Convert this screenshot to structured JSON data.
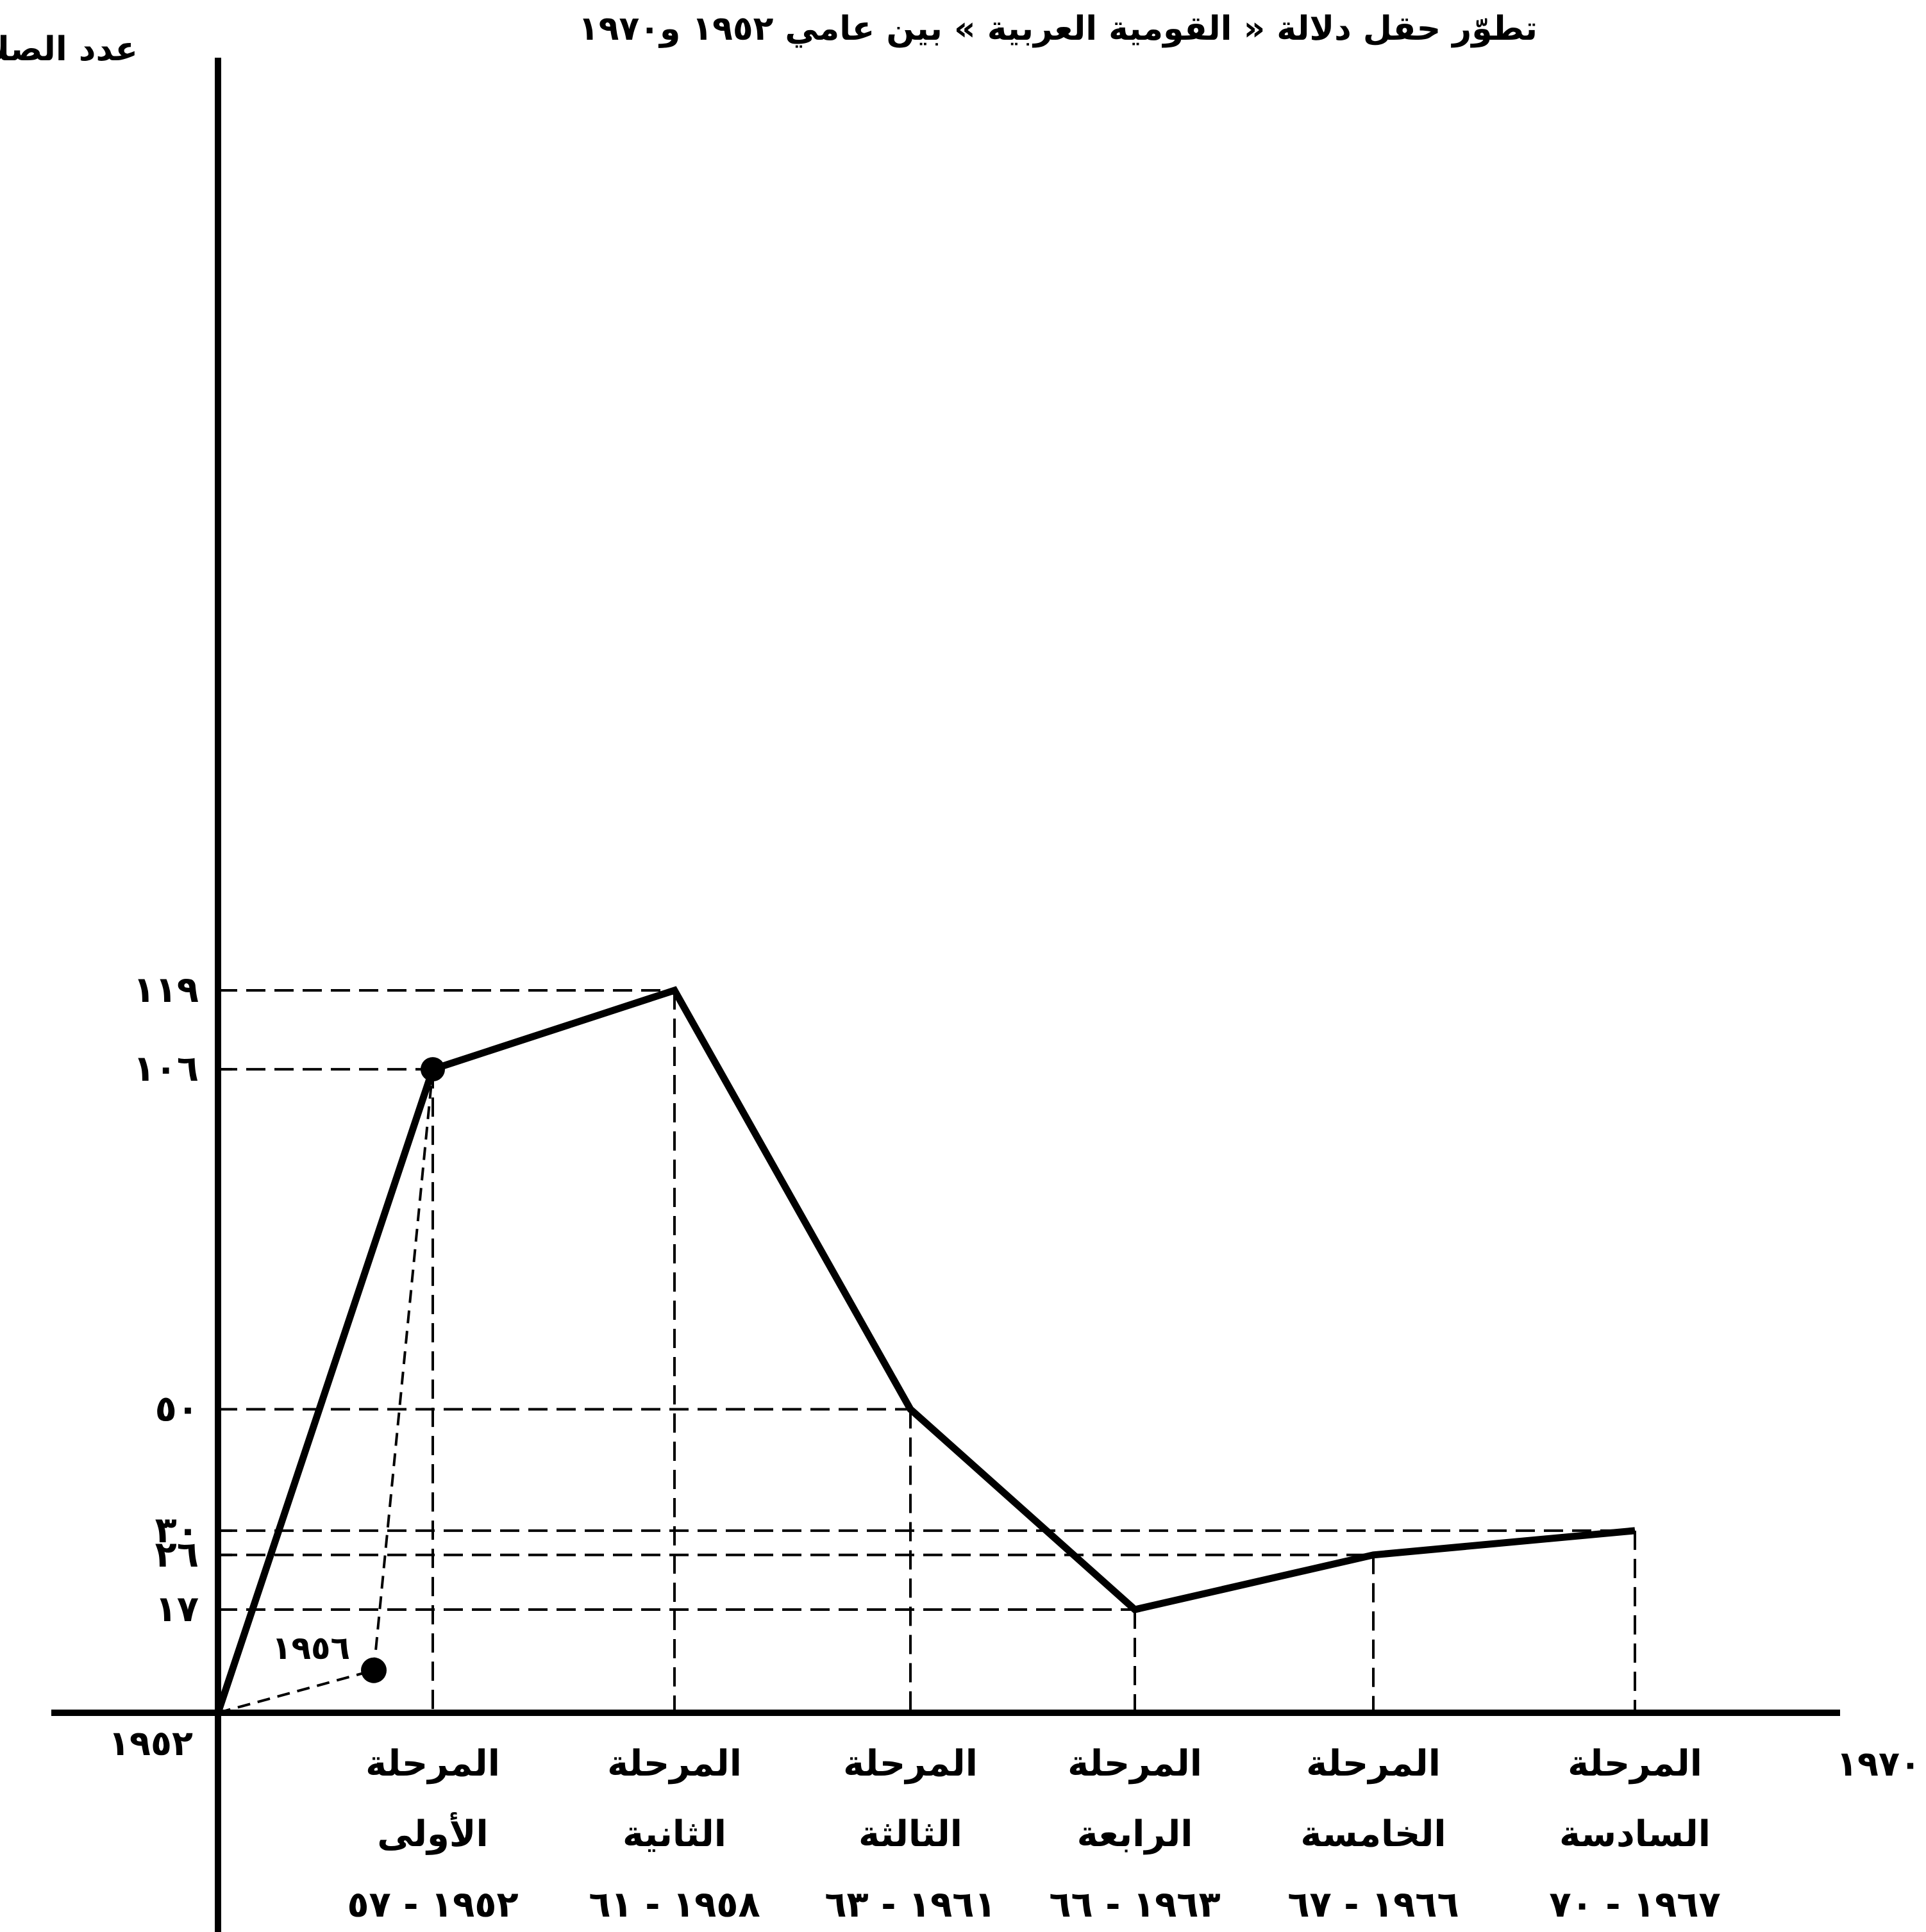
{
  "chart_data": {
    "type": "line",
    "title": "تطوّر حقل دلالة « القومية العربية » بين عامي ١٩٥٢ و١٩٧٠",
    "ylabel": "عدد الصلات",
    "x_start_label": "١٩٥٢",
    "x_end_label": "١٩٧٠",
    "ylim": [
      0,
      260
    ],
    "y_ticks": [
      {
        "value": 17,
        "label": "١٧"
      },
      {
        "value": 26,
        "label": "٢٦"
      },
      {
        "value": 30,
        "label": "٣٠"
      },
      {
        "value": 50,
        "label": "٥٠"
      },
      {
        "value": 106,
        "label": "١٠٦"
      },
      {
        "value": 119,
        "label": "١١٩"
      }
    ],
    "categories": [
      {
        "line1": "المرحلة",
        "line2": "الأولى",
        "years": "١٩٥٢ - ٥٧"
      },
      {
        "line1": "المرحلة",
        "line2": "الثانية",
        "years": "١٩٥٨ - ٦١"
      },
      {
        "line1": "المرحلة",
        "line2": "الثالثة",
        "years": "١٩٦١ - ٦٣"
      },
      {
        "line1": "المرحلة",
        "line2": "الرابعة",
        "years": "١٩٦٣ - ٦٦"
      },
      {
        "line1": "المرحلة",
        "line2": "الخامسة",
        "years": "١٩٦٦ - ٦٧"
      },
      {
        "line1": "المرحلة",
        "line2": "السادسة",
        "years": "١٩٦٧ - ٧٠"
      }
    ],
    "origin_value": 0,
    "values": [
      106,
      119,
      50,
      17,
      26,
      30
    ],
    "annotation": {
      "label": "١٩٥٦",
      "value": 7,
      "after_category_index": 0
    },
    "grid": false
  }
}
